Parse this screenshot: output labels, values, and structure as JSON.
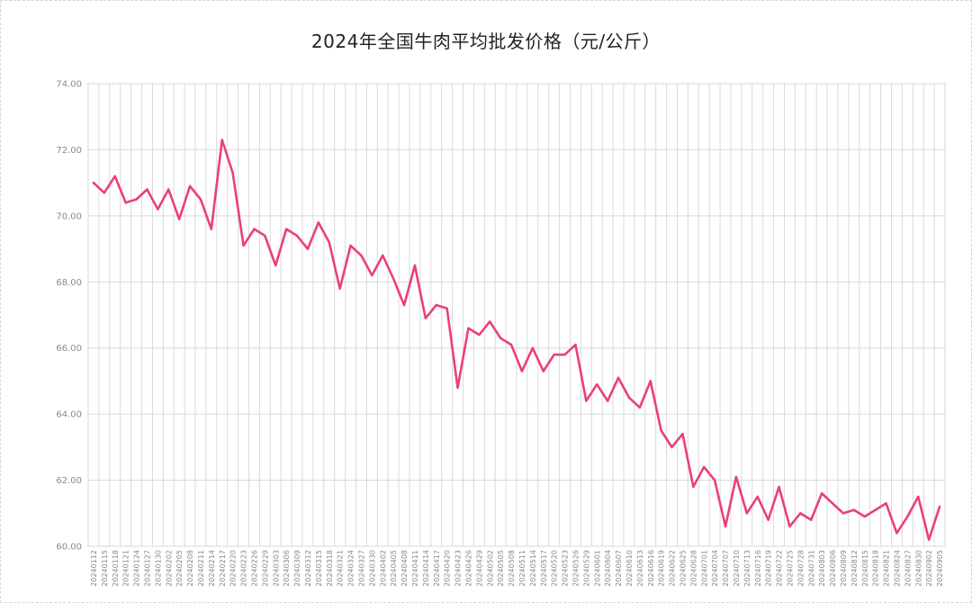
{
  "chart_data": {
    "type": "line",
    "title": "2024年全国牛肉平均批发价格（元/公斤）",
    "xlabel": "",
    "ylabel": "",
    "ylim": [
      60,
      74
    ],
    "yticks": [
      "60.00",
      "62.00",
      "64.00",
      "66.00",
      "68.00",
      "70.00",
      "72.00",
      "74.00"
    ],
    "grid": true,
    "legend": "none",
    "colors": {
      "line": "#ea3f7d",
      "grid": "#d9d9d9",
      "axis_text": "#8a8a8a"
    },
    "x": [
      "20240112",
      "20240115",
      "20240118",
      "20240121",
      "20240124",
      "20240127",
      "20240130",
      "20240202",
      "20240205",
      "20240208",
      "20240211",
      "20240214",
      "20240217",
      "20240220",
      "20240223",
      "20240226",
      "20240229",
      "20240303",
      "20240306",
      "20240309",
      "20240312",
      "20240315",
      "20240318",
      "20240321",
      "20240324",
      "20240327",
      "20240330",
      "20240402",
      "20240405",
      "20240408",
      "20240411",
      "20240414",
      "20240417",
      "20240420",
      "20240423",
      "20240426",
      "20240429",
      "20240502",
      "20240505",
      "20240508",
      "20240511",
      "20240514",
      "20240517",
      "20240520",
      "20240523",
      "20240526",
      "20240529",
      "20240601",
      "20240604",
      "20240607",
      "20240610",
      "20240613",
      "20240616",
      "20240619",
      "20240622",
      "20240625",
      "20240628",
      "20240701",
      "20240704",
      "20240707",
      "20240710",
      "20240713",
      "20240716",
      "20240719",
      "20240722",
      "20240725",
      "20240728",
      "20240731",
      "20240803",
      "20240806",
      "20240809",
      "20240812",
      "20240815",
      "20240818",
      "20240821",
      "20240824",
      "20240827",
      "20240830",
      "20240902",
      "20240905"
    ],
    "series": [
      {
        "values": [
          71.0,
          70.7,
          71.2,
          70.4,
          70.5,
          70.8,
          70.2,
          70.8,
          69.9,
          70.9,
          70.5,
          69.6,
          72.3,
          71.3,
          69.1,
          69.6,
          69.4,
          68.5,
          69.6,
          69.4,
          69.0,
          69.8,
          69.2,
          67.8,
          69.1,
          68.8,
          68.2,
          68.8,
          68.1,
          67.3,
          68.5,
          66.9,
          67.3,
          67.2,
          64.8,
          66.6,
          66.4,
          66.8,
          66.3,
          66.1,
          65.3,
          66.0,
          65.3,
          65.8,
          65.8,
          66.1,
          64.4,
          64.9,
          64.4,
          65.1,
          64.5,
          64.2,
          65.0,
          63.5,
          63.0,
          63.4,
          61.8,
          62.4,
          62.0,
          60.6,
          62.1,
          61.0,
          61.5,
          60.8,
          61.8,
          60.6,
          61.0,
          60.8,
          61.6,
          61.3,
          61.0,
          61.1,
          60.9,
          61.1,
          61.3,
          60.4,
          60.9,
          61.5,
          60.2,
          61.2
        ]
      }
    ]
  }
}
